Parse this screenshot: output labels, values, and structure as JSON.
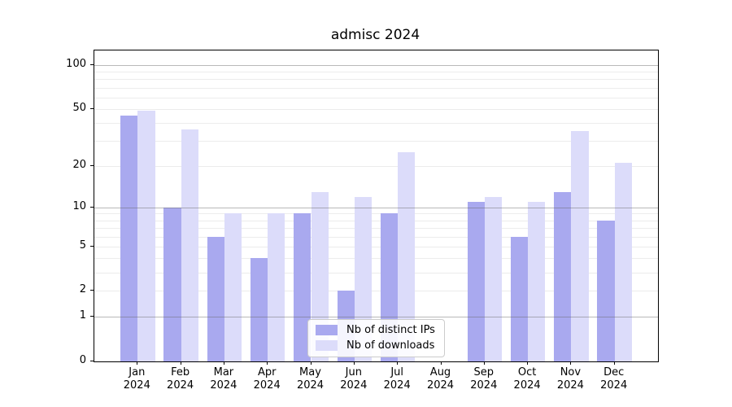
{
  "title": "admisc 2024",
  "chart_data": {
    "type": "bar",
    "title": "admisc 2024",
    "scale": "log1p (y position proportional to log10(1+value), 0 at baseline)",
    "categories": [
      "Jan",
      "Feb",
      "Mar",
      "Apr",
      "May",
      "Jun",
      "Jul",
      "Aug",
      "Sep",
      "Oct",
      "Nov",
      "Dec"
    ],
    "xlabel_year": "2024",
    "series": [
      {
        "name": "Nb of distinct IPs",
        "color": "#a9a9ef",
        "values": [
          45,
          10,
          6,
          4,
          9,
          2,
          9,
          0,
          11,
          6,
          13,
          8
        ]
      },
      {
        "name": "Nb of downloads",
        "color": "#dcdcfa",
        "values": [
          49,
          36,
          9,
          9,
          13,
          12,
          25,
          0,
          12,
          11,
          35,
          21
        ]
      }
    ],
    "yticks": [
      100,
      50,
      20,
      10,
      5,
      2,
      1,
      0
    ],
    "ylim": [
      0,
      126
    ],
    "grid": {
      "minor_values": [
        2,
        3,
        4,
        5,
        6,
        7,
        8,
        9,
        20,
        30,
        40,
        50,
        60,
        70,
        80,
        90
      ],
      "major_values": [
        1,
        10,
        100
      ],
      "minor_color": "#ececec",
      "major_color": "#b3b3b3"
    },
    "legend_position": "lower center"
  },
  "colors": {
    "background": "#ffffff",
    "axis": "#000000",
    "text": "#000000"
  }
}
